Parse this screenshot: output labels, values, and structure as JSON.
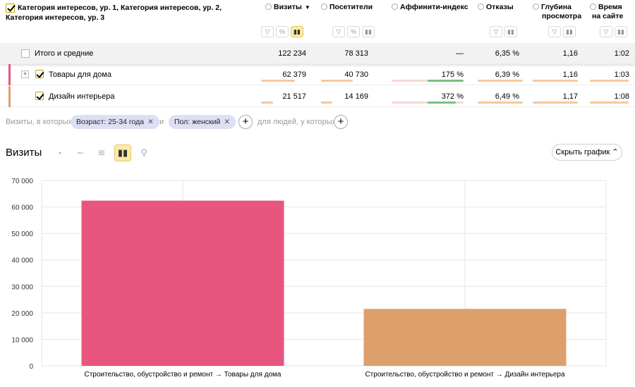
{
  "table": {
    "dimension_header_line1": "Категория интересов, ур. 1, Категория интересов, ур. 2,",
    "dimension_header_line2": "Категория интересов, ур. 3",
    "columns": [
      {
        "label": "Визиты",
        "sort": "▼"
      },
      {
        "label": "Посетители"
      },
      {
        "label": "Аффинити-индекс"
      },
      {
        "label": "Отказы"
      },
      {
        "label_line1": "Глубина",
        "label_line2": "просмотра"
      },
      {
        "label_line1": "Время",
        "label_line2": "на сайте"
      }
    ],
    "total": {
      "label": "Итого и средние",
      "values": [
        "122 234",
        "78 313",
        "—",
        "6,35 %",
        "1,16",
        "1:02"
      ]
    },
    "rows": [
      {
        "label": "Товары для дома",
        "color": "#e8557f",
        "values": [
          "62 379",
          "40 730",
          "175 %",
          "6,39 %",
          "1,16",
          "1:03"
        ]
      },
      {
        "label": "Дизайн интерьера",
        "color": "#dda06b",
        "values": [
          "21 517",
          "14 169",
          "372 %",
          "6,49 %",
          "1,17",
          "1:08"
        ]
      }
    ]
  },
  "segment": {
    "prefix": "Визиты, в которых",
    "chip1": "Возраст: 25-34 года",
    "conj": "и",
    "chip2": "Пол: женский",
    "suffix": "для людей, у которых"
  },
  "chart_header": {
    "title": "Визиты",
    "hide_button": "Скрыть график"
  },
  "colors": {
    "accent": "#fde9a8",
    "bar1": "#e8557f",
    "bar2": "#dda06b"
  },
  "chart_data": {
    "type": "bar",
    "categories": [
      "Строительство, обустройство и ремонт → Товары для дома",
      "Строительство, обустройство и ремонт → Дизайн интерьера"
    ],
    "values": [
      62379,
      21517
    ],
    "yticks": [
      "70 000",
      "60 000",
      "50 000",
      "40 000",
      "30 000",
      "20 000",
      "10 000",
      "0"
    ],
    "ylim": [
      0,
      70000
    ],
    "grid": true
  }
}
